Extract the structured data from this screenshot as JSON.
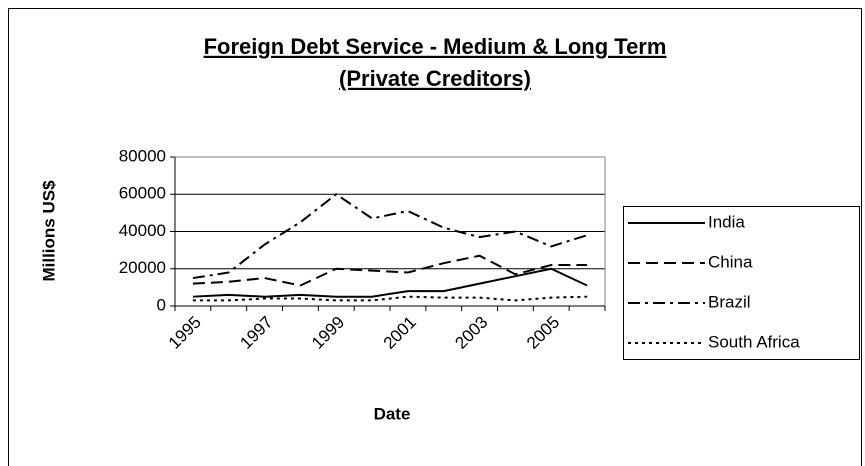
{
  "chart_data": {
    "type": "line",
    "title": "Foreign Debt Service - Medium & Long Term",
    "subtitle": "(Private Creditors)",
    "x_label": "Date",
    "y_label": "Millions US$",
    "categories": [
      "1995",
      null,
      "1997",
      null,
      "1999",
      null,
      "2001",
      null,
      "2003",
      null,
      "2005",
      null
    ],
    "series": [
      {
        "name": "India",
        "color": "#000000",
        "dash": "solid",
        "values": [
          5000,
          6000,
          5000,
          6000,
          5000,
          5000,
          8000,
          8000,
          12000,
          16000,
          20000,
          11000
        ]
      },
      {
        "name": "China",
        "color": "#000000",
        "dash": "dashed",
        "values": [
          12000,
          13000,
          15000,
          11000,
          20000,
          19000,
          18000,
          23000,
          27000,
          17000,
          22000,
          22000
        ]
      },
      {
        "name": "Brazil",
        "color": "#000000",
        "dash": "dashdot",
        "values": [
          15000,
          18000,
          33000,
          45000,
          60000,
          47000,
          51000,
          42000,
          37000,
          40000,
          32000,
          38000
        ]
      },
      {
        "name": "South Africa",
        "color": "#000000",
        "dash": "dotted",
        "values": [
          3000,
          3000,
          4000,
          4000,
          3000,
          3000,
          5000,
          4500,
          4500,
          3000,
          4500,
          5000
        ]
      }
    ],
    "ylim": [
      0,
      80000
    ],
    "yticks": [
      0,
      20000,
      40000,
      60000,
      80000
    ],
    "grid": true,
    "legend": "right"
  }
}
